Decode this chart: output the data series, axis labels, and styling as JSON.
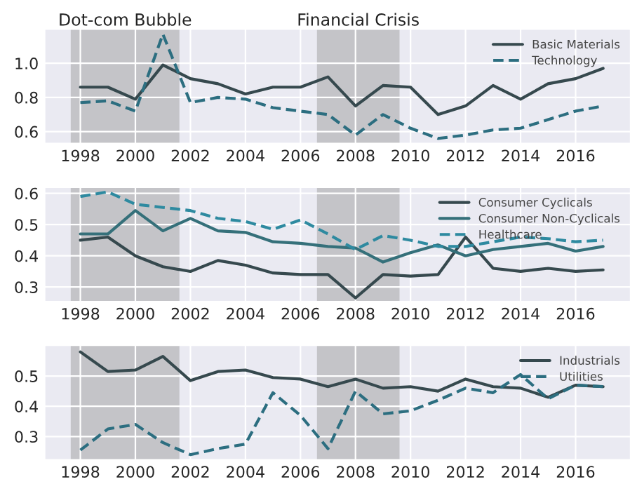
{
  "chart_data": [
    {
      "type": "line",
      "x": [
        1998,
        1999,
        2000,
        2001,
        2002,
        2003,
        2004,
        2005,
        2006,
        2007,
        2008,
        2009,
        2010,
        2011,
        2012,
        2013,
        2014,
        2015,
        2016,
        2017
      ],
      "series": [
        {
          "name": "Basic Materials",
          "color": "#36494e",
          "line_style": "solid",
          "values": [
            0.86,
            0.86,
            0.79,
            0.99,
            0.91,
            0.88,
            0.82,
            0.86,
            0.86,
            0.92,
            0.75,
            0.87,
            0.86,
            0.7,
            0.75,
            0.87,
            0.79,
            0.88,
            0.91,
            0.97
          ]
        },
        {
          "name": "Technology",
          "color": "#2c6e80",
          "line_style": "dashed",
          "values": [
            0.77,
            0.78,
            0.72,
            1.17,
            0.77,
            0.8,
            0.79,
            0.74,
            0.72,
            0.7,
            0.58,
            0.7,
            0.62,
            0.56,
            0.58,
            0.61,
            0.62,
            0.67,
            0.72,
            0.75
          ]
        }
      ],
      "bands": [
        {
          "axis": "x",
          "from": 1997.65,
          "to": 2001.6,
          "label": "Dot-com Bubble",
          "color": "#c4c4c8"
        },
        {
          "axis": "x",
          "from": 2006.6,
          "to": 2009.6,
          "label": "Financial Crisis",
          "color": "#c4c4c8"
        }
      ],
      "xlim": [
        1996.7,
        2018
      ],
      "xticks": [
        1998,
        2000,
        2002,
        2004,
        2006,
        2008,
        2010,
        2012,
        2014,
        2016
      ],
      "ylim": [
        0.53,
        1.2
      ],
      "yticks": [
        {
          "value": 0.6,
          "label": "0.6"
        },
        {
          "value": 0.8,
          "label": "0.8"
        },
        {
          "value": 1.0,
          "label": "1.0"
        }
      ],
      "grid": true,
      "legend": "top right"
    },
    {
      "type": "line",
      "x": [
        1998,
        1999,
        2000,
        2001,
        2002,
        2003,
        2004,
        2005,
        2006,
        2007,
        2008,
        2009,
        2010,
        2011,
        2012,
        2013,
        2014,
        2015,
        2016,
        2017
      ],
      "series": [
        {
          "name": "Consumer Cyclicals",
          "color": "#36494e",
          "line_style": "solid",
          "values": [
            0.45,
            0.46,
            0.4,
            0.365,
            0.35,
            0.385,
            0.37,
            0.345,
            0.34,
            0.34,
            0.265,
            0.34,
            0.335,
            0.34,
            0.46,
            0.36,
            0.35,
            0.36,
            0.35,
            0.355
          ]
        },
        {
          "name": "Consumer Non-Cyclicals",
          "color": "#35707a",
          "line_style": "solid",
          "values": [
            0.47,
            0.47,
            0.545,
            0.48,
            0.52,
            0.48,
            0.475,
            0.445,
            0.44,
            0.43,
            0.425,
            0.38,
            0.41,
            0.435,
            0.4,
            0.42,
            0.43,
            0.44,
            0.415,
            0.43
          ]
        },
        {
          "name": "Healthcare",
          "color": "#2e8aa0",
          "line_style": "dashed",
          "values": [
            0.59,
            0.605,
            0.565,
            0.555,
            0.545,
            0.52,
            0.51,
            0.485,
            0.515,
            0.47,
            0.42,
            0.465,
            0.45,
            0.43,
            0.43,
            0.445,
            0.46,
            0.455,
            0.445,
            0.45
          ]
        }
      ],
      "bands": [
        {
          "axis": "x",
          "from": 1997.65,
          "to": 2001.6,
          "color": "#c4c4c8"
        },
        {
          "axis": "x",
          "from": 2006.6,
          "to": 2009.6,
          "color": "#c4c4c8"
        }
      ],
      "xlim": [
        1996.7,
        2018
      ],
      "xticks": [
        1998,
        2000,
        2002,
        2004,
        2006,
        2008,
        2010,
        2012,
        2014,
        2016
      ],
      "ylim": [
        0.253,
        0.62
      ],
      "yticks": [
        0.3,
        0.4,
        0.5,
        0.6
      ],
      "grid": true,
      "legend": "top right"
    },
    {
      "type": "line",
      "x": [
        1998,
        1999,
        2000,
        2001,
        2002,
        2003,
        2004,
        2005,
        2006,
        2007,
        2008,
        2009,
        2010,
        2011,
        2012,
        2013,
        2014,
        2015,
        2016,
        2017
      ],
      "series": [
        {
          "name": "Industrials",
          "color": "#36494e",
          "line_style": "solid",
          "values": [
            0.58,
            0.515,
            0.52,
            0.565,
            0.485,
            0.515,
            0.52,
            0.495,
            0.49,
            0.465,
            0.49,
            0.46,
            0.465,
            0.45,
            0.49,
            0.465,
            0.46,
            0.43,
            0.47,
            0.465
          ]
        },
        {
          "name": "Utilities",
          "color": "#2c6e80",
          "line_style": "dashed",
          "values": [
            0.255,
            0.325,
            0.34,
            0.28,
            0.24,
            0.26,
            0.275,
            0.445,
            0.37,
            0.26,
            0.45,
            0.375,
            0.385,
            0.42,
            0.46,
            0.445,
            0.505,
            0.425,
            0.47,
            0.465
          ]
        }
      ],
      "bands": [
        {
          "axis": "x",
          "from": 1997.65,
          "to": 2001.6,
          "color": "#c4c4c8"
        },
        {
          "axis": "x",
          "from": 2006.6,
          "to": 2009.6,
          "color": "#c4c4c8"
        }
      ],
      "xlim": [
        1996.7,
        2018
      ],
      "xticks": [
        1998,
        2000,
        2002,
        2004,
        2006,
        2008,
        2010,
        2012,
        2014,
        2016
      ],
      "ylim": [
        0.223,
        0.602
      ],
      "yticks": [
        0.3,
        0.4,
        0.5
      ],
      "grid": true,
      "legend": "top right"
    }
  ]
}
